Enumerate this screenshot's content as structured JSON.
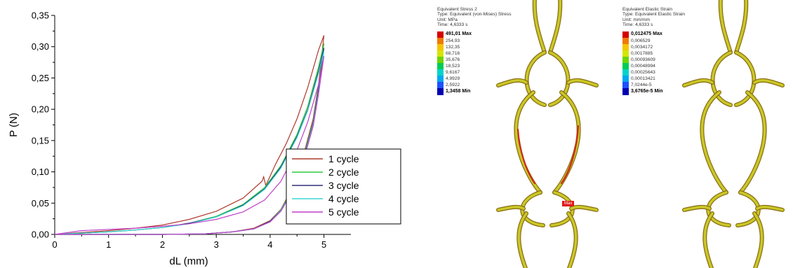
{
  "chart_data": {
    "type": "line",
    "xlabel": "dL (mm)",
    "ylabel": "P (N)",
    "xlim": [
      0,
      5.5
    ],
    "ylim": [
      0,
      0.35
    ],
    "x_ticks": [
      "0",
      "1",
      "2",
      "3",
      "4",
      "5"
    ],
    "y_ticks": [
      "0,00",
      "0,05",
      "0,10",
      "0,15",
      "0,20",
      "0,25",
      "0,30",
      "0,35"
    ],
    "grid": false,
    "legend_position": "bottom-right",
    "series": [
      {
        "name": "1 cycle",
        "color": "#b03a2e",
        "loading": [
          [
            0,
            0
          ],
          [
            0.5,
            0.003
          ],
          [
            1,
            0.006
          ],
          [
            1.5,
            0.01
          ],
          [
            2,
            0.015
          ],
          [
            2.5,
            0.024
          ],
          [
            3,
            0.037
          ],
          [
            3.5,
            0.058
          ],
          [
            3.85,
            0.085
          ],
          [
            3.88,
            0.092
          ],
          [
            3.92,
            0.078
          ],
          [
            4.1,
            0.112
          ],
          [
            4.3,
            0.145
          ],
          [
            4.5,
            0.185
          ],
          [
            4.7,
            0.235
          ],
          [
            4.9,
            0.295
          ],
          [
            5,
            0.318
          ]
        ],
        "unloading": [
          [
            5,
            0.318
          ],
          [
            4.9,
            0.24
          ],
          [
            4.8,
            0.185
          ],
          [
            4.6,
            0.12
          ],
          [
            4.4,
            0.072
          ],
          [
            4.2,
            0.04
          ],
          [
            4,
            0.022
          ],
          [
            3.7,
            0.01
          ],
          [
            3.3,
            0.004
          ],
          [
            2.8,
            0.001
          ],
          [
            2,
            0
          ],
          [
            1,
            0
          ],
          [
            0,
            0
          ]
        ]
      },
      {
        "name": "2 cycle",
        "color": "#2ecc40",
        "loading": [
          [
            0,
            0
          ],
          [
            0.5,
            0.002
          ],
          [
            1,
            0.004
          ],
          [
            1.5,
            0.007
          ],
          [
            2,
            0.011
          ],
          [
            2.5,
            0.018
          ],
          [
            3,
            0.029
          ],
          [
            3.5,
            0.048
          ],
          [
            3.9,
            0.075
          ],
          [
            4.2,
            0.11
          ],
          [
            4.5,
            0.16
          ],
          [
            4.7,
            0.205
          ],
          [
            4.9,
            0.268
          ],
          [
            5,
            0.305
          ]
        ],
        "unloading": [
          [
            5,
            0.305
          ],
          [
            4.9,
            0.235
          ],
          [
            4.8,
            0.18
          ],
          [
            4.6,
            0.117
          ],
          [
            4.4,
            0.07
          ],
          [
            4.2,
            0.039
          ],
          [
            4,
            0.021
          ],
          [
            3.7,
            0.009
          ],
          [
            3.3,
            0.004
          ],
          [
            2.8,
            0.001
          ],
          [
            2,
            0
          ],
          [
            1,
            0
          ],
          [
            0,
            0
          ]
        ]
      },
      {
        "name": "3 cycle",
        "color": "#2c2f7a",
        "loading": [
          [
            0,
            0
          ],
          [
            0.5,
            0.002
          ],
          [
            1,
            0.004
          ],
          [
            1.5,
            0.007
          ],
          [
            2,
            0.011
          ],
          [
            2.5,
            0.018
          ],
          [
            3,
            0.028
          ],
          [
            3.5,
            0.047
          ],
          [
            3.9,
            0.073
          ],
          [
            4.2,
            0.108
          ],
          [
            4.5,
            0.157
          ],
          [
            4.7,
            0.2
          ],
          [
            4.9,
            0.262
          ],
          [
            5,
            0.298
          ]
        ],
        "unloading": [
          [
            5,
            0.298
          ],
          [
            4.9,
            0.232
          ],
          [
            4.8,
            0.178
          ],
          [
            4.6,
            0.115
          ],
          [
            4.4,
            0.069
          ],
          [
            4.2,
            0.038
          ],
          [
            4,
            0.021
          ],
          [
            3.7,
            0.009
          ],
          [
            3.3,
            0.004
          ],
          [
            2.8,
            0.001
          ],
          [
            2,
            0
          ],
          [
            1,
            0
          ],
          [
            0,
            0
          ]
        ]
      },
      {
        "name": "4 cycle",
        "color": "#3ad6d6",
        "loading": [
          [
            0,
            0
          ],
          [
            0.5,
            0.002
          ],
          [
            1,
            0.004
          ],
          [
            1.5,
            0.007
          ],
          [
            2,
            0.011
          ],
          [
            2.5,
            0.017
          ],
          [
            3,
            0.028
          ],
          [
            3.5,
            0.046
          ],
          [
            3.9,
            0.072
          ],
          [
            4.2,
            0.106
          ],
          [
            4.5,
            0.155
          ],
          [
            4.7,
            0.198
          ],
          [
            4.9,
            0.258
          ],
          [
            5,
            0.293
          ]
        ],
        "unloading": [
          [
            5,
            0.293
          ],
          [
            4.9,
            0.228
          ],
          [
            4.8,
            0.176
          ],
          [
            4.6,
            0.114
          ],
          [
            4.4,
            0.068
          ],
          [
            4.2,
            0.038
          ],
          [
            4,
            0.02
          ],
          [
            3.7,
            0.009
          ],
          [
            3.3,
            0.004
          ],
          [
            2.8,
            0.001
          ],
          [
            2,
            0
          ],
          [
            1,
            0
          ],
          [
            0,
            0
          ]
        ]
      },
      {
        "name": "5 cycle",
        "color": "#c040c8",
        "loading": [
          [
            0,
            0
          ],
          [
            0.5,
            0.006
          ],
          [
            1,
            0.008
          ],
          [
            1.5,
            0.01
          ],
          [
            2,
            0.013
          ],
          [
            2.5,
            0.017
          ],
          [
            3,
            0.024
          ],
          [
            3.5,
            0.036
          ],
          [
            3.9,
            0.055
          ],
          [
            4.2,
            0.085
          ],
          [
            4.5,
            0.135
          ],
          [
            4.7,
            0.18
          ],
          [
            4.9,
            0.24
          ],
          [
            5,
            0.285
          ]
        ],
        "unloading": [
          [
            5,
            0.285
          ],
          [
            4.9,
            0.225
          ],
          [
            4.8,
            0.173
          ],
          [
            4.6,
            0.112
          ],
          [
            4.4,
            0.067
          ],
          [
            4.2,
            0.037
          ],
          [
            4,
            0.02
          ],
          [
            3.7,
            0.009
          ],
          [
            3.3,
            0.004
          ],
          [
            2.8,
            0.001
          ],
          [
            2,
            0
          ],
          [
            1,
            0
          ],
          [
            0,
            0
          ]
        ]
      }
    ]
  },
  "fem": {
    "stress": {
      "title": "Equivalent Stress 2",
      "type": "Type: Equivalent (von-Mises) Stress",
      "unit": "Unit: MPa",
      "time": "Time: 4,6333 s",
      "levels": [
        "491,01 Max",
        "254,93",
        "132,35",
        "68,716",
        "35,676",
        "18,523",
        "9,6167",
        "4,9929",
        "2,5922",
        "1,3458 Min"
      ],
      "max_tag": "Max"
    },
    "strain": {
      "title": "Equivalent Elastic Strain",
      "type": "Type: Equivalent Elastic Strain",
      "unit": "Unit: mm/mm",
      "time": "Time: 4,6333 s",
      "levels": [
        "0,012475 Max",
        "0,006529",
        "0,0034172",
        "0,0017885",
        "0,00093609",
        "0,00048994",
        "0,00025643",
        "0,00013421",
        "7,0244e-5",
        "3,6765e-5 Min"
      ]
    },
    "scale_colors": [
      "#d40000",
      "#f07a00",
      "#f5c400",
      "#d4e600",
      "#6fd400",
      "#00cc55",
      "#00d4c8",
      "#00a8f0",
      "#1e50ff",
      "#0000b0"
    ],
    "body_color": "#c8c828",
    "edge_color": "#8a6a10",
    "hot_color": "#cc2a1a"
  }
}
